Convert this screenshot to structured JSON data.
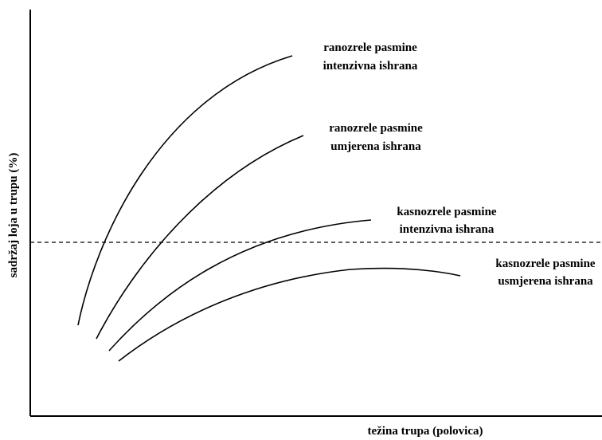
{
  "curves": [
    {
      "line1": "ranozrele pasmine",
      "line2": "intenzivna ishrana"
    },
    {
      "line1": "ranozrele pasmine",
      "line2": "umjerena ishrana"
    },
    {
      "line1": "kasnozrele pasmine",
      "line2": "intenzivna ishrana"
    },
    {
      "line1": "kasnozrele pasmine",
      "line2": "usmjerena ishrana"
    }
  ],
  "x_axis_label": "težina trupa (polovica)",
  "y_axis_label": "sadržaj loja u trupu  (%)"
}
